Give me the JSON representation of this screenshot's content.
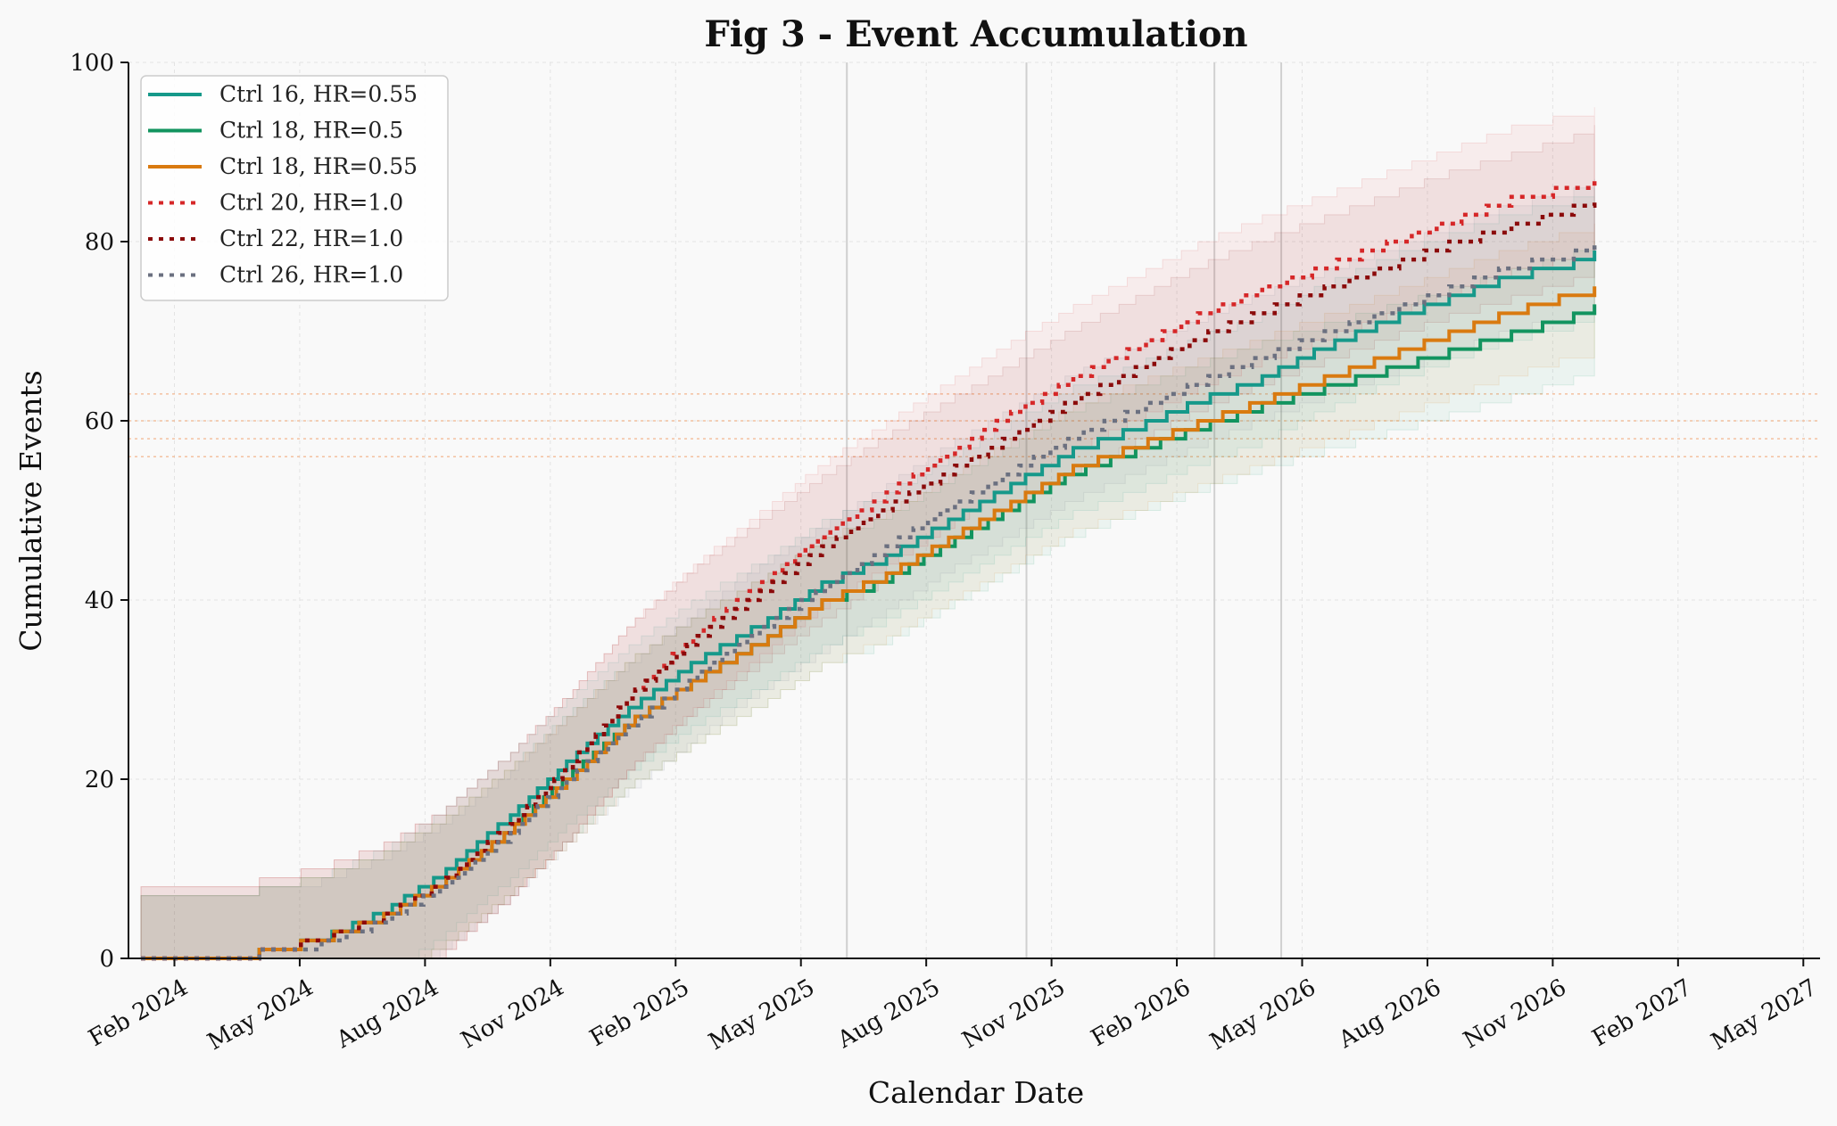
{
  "chart_data": {
    "type": "line",
    "title": "Fig 3 - Event Accumulation",
    "xlabel": "Calendar Date",
    "ylabel": "Cumulative Events",
    "x_unit": "months since Jan 2024",
    "xlim": [
      -0.1,
      40.4
    ],
    "ylim": [
      0,
      100
    ],
    "yticks": [
      0,
      20,
      40,
      60,
      80,
      100
    ],
    "xticks": [
      {
        "x": 1,
        "label": "Feb 2024"
      },
      {
        "x": 4,
        "label": "May 2024"
      },
      {
        "x": 7,
        "label": "Aug 2024"
      },
      {
        "x": 10,
        "label": "Nov 2024"
      },
      {
        "x": 13,
        "label": "Feb 2025"
      },
      {
        "x": 16,
        "label": "May 2025"
      },
      {
        "x": 19,
        "label": "Aug 2025"
      },
      {
        "x": 22,
        "label": "Nov 2025"
      },
      {
        "x": 25,
        "label": "Feb 2026"
      },
      {
        "x": 28,
        "label": "May 2026"
      },
      {
        "x": 31,
        "label": "Aug 2026"
      },
      {
        "x": 34,
        "label": "Nov 2026"
      },
      {
        "x": 37,
        "label": "Feb 2027"
      },
      {
        "x": 40,
        "label": "May 2027"
      }
    ],
    "vertical_lines": [
      17.1,
      21.4,
      25.9,
      27.5
    ],
    "horizontal_reference_lines": [
      56,
      58,
      60,
      63
    ],
    "grid": true,
    "legend_position": "top-left",
    "series": [
      {
        "name": "Ctrl 16, HR=0.55",
        "color": "#16998a",
        "style": "solid",
        "x": [
          0.2,
          2.0,
          3.0,
          4.5,
          6.0,
          7.5,
          9.0,
          10.5,
          12.0,
          13.5,
          15.0,
          16.5,
          18.0,
          19.5,
          21.0,
          22.5,
          24.0,
          25.5,
          27.0,
          28.5,
          30.0,
          31.5,
          33.0,
          34.5,
          35.0
        ],
        "y": [
          0,
          0.5,
          1,
          2.5,
          5.5,
          10,
          16,
          22.5,
          28.5,
          33.5,
          37.5,
          42,
          45,
          49,
          53,
          57,
          59.5,
          62.5,
          65,
          68.5,
          71.5,
          74,
          76.5,
          78,
          79
        ],
        "band_halfwidth": 7
      },
      {
        "name": "Ctrl 18, HR=0.5",
        "color": "#12945f",
        "style": "solid",
        "x": [
          0.2,
          2.0,
          3.0,
          4.5,
          6.0,
          7.5,
          9.0,
          10.5,
          12.0,
          13.5,
          15.0,
          16.5,
          18.0,
          19.5,
          21.0,
          22.5,
          24.0,
          25.5,
          27.0,
          28.5,
          30.0,
          31.5,
          33.0,
          34.5,
          35.0
        ],
        "y": [
          0,
          0.5,
          1,
          2.5,
          5,
          9,
          14.5,
          21,
          27,
          31.5,
          35.5,
          40,
          42.5,
          46.5,
          50.5,
          54.5,
          57,
          59.5,
          62,
          64,
          66,
          68,
          70,
          72,
          73
        ],
        "band_halfwidth": 7
      },
      {
        "name": "Ctrl 18, HR=0.55",
        "color": "#d97a10",
        "style": "solid",
        "x": [
          0.2,
          2.0,
          3.0,
          4.5,
          6.0,
          7.5,
          9.0,
          10.5,
          12.0,
          13.5,
          15.0,
          16.5,
          18.0,
          19.5,
          21.0,
          22.5,
          24.0,
          25.5,
          27.0,
          28.5,
          30.0,
          31.5,
          33.0,
          34.5,
          35.0
        ],
        "y": [
          0,
          0.5,
          1,
          2.5,
          5,
          9,
          14.5,
          20.5,
          27,
          31.5,
          35.5,
          40,
          43,
          47,
          51,
          55,
          57.5,
          60,
          62.5,
          65,
          67.5,
          70,
          72.5,
          74.5,
          75
        ],
        "band_halfwidth": 7
      },
      {
        "name": "Ctrl 20, HR=1.0",
        "color": "#d62728",
        "style": "dotted",
        "x": [
          0.2,
          2.0,
          3.0,
          4.5,
          6.0,
          7.5,
          9.0,
          10.5,
          12.0,
          13.5,
          15.0,
          16.5,
          18.0,
          19.5,
          21.0,
          22.5,
          24.0,
          25.5,
          27.0,
          28.5,
          30.0,
          31.5,
          33.0,
          34.5,
          35.0
        ],
        "y": [
          0,
          0.5,
          1,
          2.5,
          5,
          9,
          15,
          22,
          30,
          36.5,
          42,
          47.5,
          52,
          56.5,
          61,
          65,
          68.5,
          72,
          75,
          77.5,
          80,
          82.5,
          85,
          86.5,
          87
        ],
        "band_halfwidth": 8
      },
      {
        "name": "Ctrl 22, HR=1.0",
        "color": "#8b0a0a",
        "style": "dotted",
        "x": [
          0.2,
          2.0,
          3.0,
          4.5,
          6.0,
          7.5,
          9.0,
          10.5,
          12.0,
          13.5,
          15.0,
          16.5,
          18.0,
          19.5,
          21.0,
          22.5,
          24.0,
          25.5,
          27.0,
          28.5,
          30.0,
          31.5,
          33.0,
          34.5,
          35.0
        ],
        "y": [
          0,
          0.5,
          1,
          2.5,
          5,
          9,
          15,
          22,
          30,
          36,
          41,
          46,
          50.5,
          54.5,
          58.5,
          62.5,
          66,
          69.5,
          72.5,
          75,
          77.5,
          80,
          82,
          84,
          85
        ],
        "band_halfwidth": 8
      },
      {
        "name": "Ctrl 26, HR=1.0",
        "color": "#6b7080",
        "style": "dotted",
        "x": [
          0.2,
          2.0,
          3.0,
          4.5,
          6.0,
          7.5,
          9.0,
          10.5,
          12.0,
          13.5,
          15.0,
          16.5,
          18.0,
          19.5,
          21.0,
          22.5,
          24.0,
          25.5,
          27.0,
          28.5,
          30.0,
          31.5,
          33.0,
          34.5,
          35.0
        ],
        "y": [
          0,
          0.5,
          1,
          2,
          4.5,
          8.5,
          14,
          20.5,
          26.5,
          32,
          37,
          41.5,
          46,
          50.5,
          54.5,
          58.5,
          61.5,
          64.5,
          67.5,
          70,
          72.5,
          75,
          77.5,
          79,
          80
        ],
        "band_halfwidth": 7
      }
    ]
  }
}
